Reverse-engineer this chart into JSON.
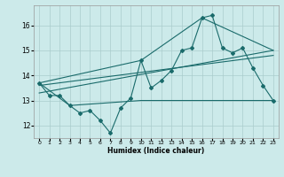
{
  "title": "",
  "xlabel": "Humidex (Indice chaleur)",
  "background_color": "#cceaea",
  "grid_color": "#aacccc",
  "line_color": "#1a6b6b",
  "xlim": [
    -0.5,
    23.5
  ],
  "ylim": [
    11.5,
    16.8
  ],
  "yticks": [
    12,
    13,
    14,
    15,
    16
  ],
  "xticks": [
    0,
    1,
    2,
    3,
    4,
    5,
    6,
    7,
    8,
    9,
    10,
    11,
    12,
    13,
    14,
    15,
    16,
    17,
    18,
    19,
    20,
    21,
    22,
    23
  ],
  "main_line_x": [
    0,
    1,
    2,
    3,
    4,
    5,
    6,
    7,
    8,
    9,
    10,
    11,
    12,
    13,
    14,
    15,
    16,
    17,
    18,
    19,
    20,
    21,
    22,
    23
  ],
  "main_line_y": [
    13.7,
    13.2,
    13.2,
    12.8,
    12.5,
    12.6,
    12.2,
    11.7,
    12.7,
    13.1,
    14.6,
    13.5,
    13.8,
    14.2,
    15.0,
    15.1,
    16.3,
    16.4,
    15.1,
    14.9,
    15.1,
    14.3,
    13.6,
    13.0
  ],
  "upper_line_x": [
    0,
    10,
    16,
    23
  ],
  "upper_line_y": [
    13.7,
    14.6,
    16.3,
    15.0
  ],
  "lower_line_x": [
    0,
    3,
    10,
    23
  ],
  "lower_line_y": [
    13.7,
    12.8,
    13.0,
    13.0
  ],
  "trend_line1_x": [
    0,
    23
  ],
  "trend_line1_y": [
    13.3,
    15.0
  ],
  "trend_line2_x": [
    0,
    23
  ],
  "trend_line2_y": [
    13.6,
    14.8
  ]
}
